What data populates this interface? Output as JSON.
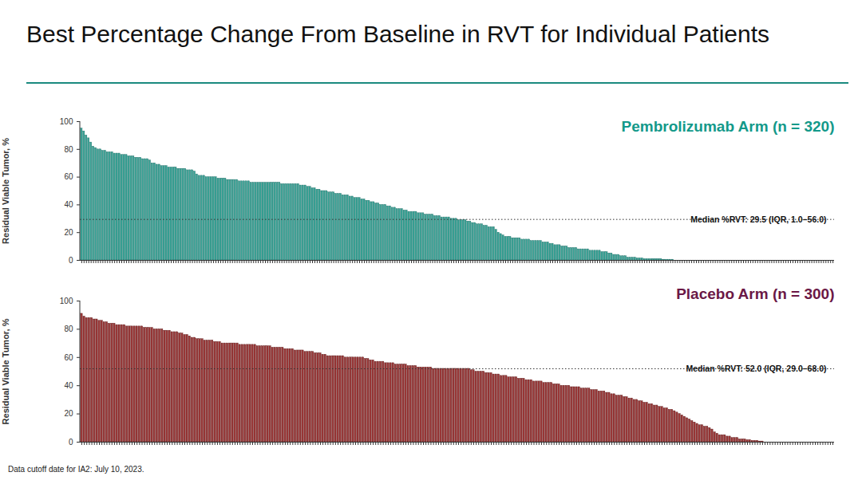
{
  "title": "Best Percentage Change From Baseline in RVT for Individual Patients",
  "footnote": "Data cutoff date for IA2: July 10, 2023.",
  "chart_data": [
    {
      "type": "bar",
      "title": "Pembrolizumab Arm (n = 320)",
      "y_label": "Residual Viable Tumor, %",
      "color": "#39a396",
      "ylim": [
        0,
        100
      ],
      "yticks": [
        0,
        20,
        40,
        60,
        80,
        100
      ],
      "tick_labels": "y",
      "annotations": [
        {
          "label": "Median %RVT: 29.5 (IQR, 1.0–56.0)",
          "y": 29.5
        }
      ],
      "categories": [
        null,
        null,
        null,
        null,
        null,
        null,
        null,
        null,
        null,
        null,
        null,
        null,
        null,
        null,
        null,
        null,
        null,
        null,
        null,
        null,
        null,
        null,
        null,
        null,
        null,
        null,
        null,
        null,
        null,
        null,
        null,
        null,
        null,
        null,
        null,
        null,
        null,
        null,
        null,
        null,
        null,
        null,
        null,
        null,
        null,
        null,
        null,
        null,
        null,
        null,
        null,
        null,
        null,
        null,
        null,
        null,
        null,
        null,
        null,
        null,
        null,
        null,
        null,
        null,
        null,
        null,
        null,
        null,
        null,
        null,
        null,
        null,
        null,
        null,
        null,
        null,
        null,
        null,
        null,
        null,
        null,
        null,
        null,
        null,
        null,
        null,
        null,
        null,
        null,
        null,
        null,
        null,
        null,
        null,
        null,
        null,
        null,
        null,
        null,
        null,
        null,
        null,
        null,
        null,
        null,
        null,
        null,
        null,
        null,
        null,
        null,
        null,
        null,
        null,
        null,
        null,
        null,
        null,
        null,
        null,
        null,
        null,
        null,
        null,
        null,
        null,
        null,
        null,
        null,
        null,
        null,
        null,
        null,
        null,
        null,
        null,
        null,
        null,
        null,
        null,
        null,
        null,
        null,
        null,
        null,
        null,
        null,
        null,
        null,
        null,
        null,
        null,
        null,
        null,
        null,
        null,
        null,
        null,
        null,
        null,
        null,
        null,
        null,
        null,
        null,
        null,
        null,
        null,
        null,
        null,
        null,
        null,
        null,
        null,
        null,
        null,
        null,
        null,
        null,
        null,
        null,
        null,
        null,
        null,
        null,
        null,
        null,
        null,
        null,
        null,
        null,
        null,
        null,
        null,
        null,
        null,
        null,
        null,
        null,
        null,
        null,
        null,
        null,
        null,
        null,
        null,
        null,
        null,
        null,
        null,
        null,
        null,
        null,
        null,
        null,
        null,
        null,
        null,
        null,
        null,
        null,
        null,
        null,
        null,
        null,
        null,
        null,
        null,
        null,
        null,
        null,
        null,
        null,
        null,
        null,
        null,
        null,
        null,
        null,
        null,
        null,
        null,
        null,
        null,
        null,
        null,
        null,
        null,
        null,
        null,
        null,
        null,
        null,
        null,
        null,
        null,
        null,
        null,
        null,
        null,
        null,
        null,
        null,
        null,
        null,
        null,
        null,
        null,
        null,
        null,
        null,
        null,
        null,
        null,
        null,
        null,
        null,
        null,
        null,
        null,
        null,
        null,
        null,
        null,
        null,
        null,
        null,
        null,
        null,
        null,
        null,
        null,
        null,
        null,
        null,
        null,
        null,
        null,
        null,
        null,
        null,
        null,
        null,
        null,
        null,
        null,
        null,
        null,
        null,
        null,
        null,
        null,
        null,
        null,
        null,
        null,
        null,
        null,
        null,
        null
      ],
      "values": [
        95,
        93,
        90,
        88,
        85,
        82,
        81,
        80,
        80,
        79,
        79,
        78,
        78,
        78,
        77,
        77,
        77,
        76,
        76,
        76,
        75,
        75,
        75,
        74,
        74,
        74,
        73,
        73,
        73,
        72,
        70,
        70,
        69,
        69,
        68,
        68,
        68,
        67,
        67,
        67,
        67,
        66,
        66,
        66,
        66,
        65,
        65,
        65,
        64,
        62,
        61,
        61,
        61,
        60,
        60,
        60,
        60,
        60,
        59,
        59,
        59,
        59,
        58,
        58,
        58,
        58,
        58,
        57,
        57,
        57,
        57,
        57,
        56,
        56,
        56,
        56,
        56,
        56,
        56,
        56,
        56,
        56,
        56,
        56,
        56,
        55,
        55,
        55,
        55,
        55,
        55,
        55,
        55,
        54,
        54,
        54,
        53,
        53,
        52,
        52,
        51,
        51,
        50,
        50,
        50,
        49,
        49,
        49,
        48,
        48,
        48,
        47,
        47,
        47,
        46,
        46,
        45,
        45,
        45,
        44,
        44,
        43,
        43,
        42,
        42,
        41,
        41,
        40,
        40,
        40,
        39,
        39,
        38,
        38,
        37,
        37,
        37,
        36,
        36,
        35,
        35,
        35,
        35,
        34,
        34,
        34,
        33,
        33,
        33,
        33,
        32,
        32,
        32,
        31,
        31,
        31,
        31,
        30,
        30,
        30,
        29,
        29,
        29,
        29,
        28,
        28,
        27,
        27,
        26,
        26,
        26,
        25,
        25,
        24,
        24,
        24,
        22,
        20,
        19,
        18,
        17,
        17,
        17,
        16,
        16,
        16,
        16,
        15,
        15,
        15,
        15,
        14,
        14,
        14,
        14,
        14,
        13,
        13,
        13,
        12,
        12,
        11,
        11,
        11,
        10,
        10,
        10,
        9,
        9,
        9,
        9,
        8,
        8,
        8,
        8,
        8,
        7,
        7,
        7,
        7,
        7,
        6,
        6,
        6,
        5,
        5,
        4,
        4,
        4,
        3,
        3,
        3,
        2,
        2,
        2,
        2,
        1.5,
        1.5,
        1.5,
        1,
        1,
        1,
        1,
        1,
        1,
        1,
        1,
        0.5,
        0.5,
        0.5,
        0.5,
        0.5,
        0,
        0,
        0,
        0,
        0,
        0,
        0,
        0,
        0,
        0,
        0,
        0,
        0,
        0,
        0,
        0,
        0,
        0,
        0,
        0,
        0,
        0,
        0,
        0,
        0,
        0,
        0,
        0,
        0,
        0,
        0,
        0,
        0,
        0,
        0,
        0,
        0,
        0,
        0,
        0,
        0,
        0,
        0,
        0,
        0,
        0,
        0,
        0,
        0,
        0,
        0,
        0,
        0,
        0,
        0,
        0,
        0,
        0,
        0,
        0,
        0,
        0,
        0,
        0,
        0,
        0,
        0,
        0
      ]
    },
    {
      "type": "bar",
      "title": "Placebo Arm (n = 300)",
      "y_label": "Residual Viable Tumor, %",
      "color": "#9a3838",
      "ylim": [
        0,
        100
      ],
      "yticks": [
        0,
        20,
        40,
        60,
        80,
        100
      ],
      "tick_labels": "y",
      "annotations": [
        {
          "label": "Median %RVT: 52.0 (IQR, 29.0–68.0)",
          "y": 52.0
        }
      ],
      "categories": [
        null,
        null,
        null,
        null,
        null,
        null,
        null,
        null,
        null,
        null,
        null,
        null,
        null,
        null,
        null,
        null,
        null,
        null,
        null,
        null,
        null,
        null,
        null,
        null,
        null,
        null,
        null,
        null,
        null,
        null,
        null,
        null,
        null,
        null,
        null,
        null,
        null,
        null,
        null,
        null,
        null,
        null,
        null,
        null,
        null,
        null,
        null,
        null,
        null,
        null,
        null,
        null,
        null,
        null,
        null,
        null,
        null,
        null,
        null,
        null,
        null,
        null,
        null,
        null,
        null,
        null,
        null,
        null,
        null,
        null,
        null,
        null,
        null,
        null,
        null,
        null,
        null,
        null,
        null,
        null,
        null,
        null,
        null,
        null,
        null,
        null,
        null,
        null,
        null,
        null,
        null,
        null,
        null,
        null,
        null,
        null,
        null,
        null,
        null,
        null,
        null,
        null,
        null,
        null,
        null,
        null,
        null,
        null,
        null,
        null,
        null,
        null,
        null,
        null,
        null,
        null,
        null,
        null,
        null,
        null,
        null,
        null,
        null,
        null,
        null,
        null,
        null,
        null,
        null,
        null,
        null,
        null,
        null,
        null,
        null,
        null,
        null,
        null,
        null,
        null,
        null,
        null,
        null,
        null,
        null,
        null,
        null,
        null,
        null,
        null,
        null,
        null,
        null,
        null,
        null,
        null,
        null,
        null,
        null,
        null,
        null,
        null,
        null,
        null,
        null,
        null,
        null,
        null,
        null,
        null,
        null,
        null,
        null,
        null,
        null,
        null,
        null,
        null,
        null,
        null,
        null,
        null,
        null,
        null,
        null,
        null,
        null,
        null,
        null,
        null,
        null,
        null,
        null,
        null,
        null,
        null,
        null,
        null,
        null,
        null,
        null,
        null,
        null,
        null,
        null,
        null,
        null,
        null,
        null,
        null,
        null,
        null,
        null,
        null,
        null,
        null,
        null,
        null,
        null,
        null,
        null,
        null,
        null,
        null,
        null,
        null,
        null,
        null,
        null,
        null,
        null,
        null,
        null,
        null,
        null,
        null,
        null,
        null,
        null,
        null,
        null,
        null,
        null,
        null,
        null,
        null,
        null,
        null,
        null,
        null,
        null,
        null,
        null,
        null,
        null,
        null,
        null,
        null,
        null,
        null,
        null,
        null,
        null,
        null,
        null,
        null,
        null,
        null,
        null,
        null,
        null,
        null,
        null,
        null,
        null,
        null,
        null,
        null,
        null,
        null,
        null,
        null,
        null,
        null,
        null,
        null,
        null,
        null,
        null,
        null,
        null,
        null,
        null,
        null,
        null,
        null,
        null,
        null,
        null,
        null
      ],
      "values": [
        91,
        89,
        88,
        88,
        88,
        87,
        87,
        86,
        86,
        85,
        85,
        84,
        84,
        84,
        83,
        83,
        83,
        83,
        82,
        82,
        82,
        82,
        82,
        82,
        82,
        81,
        81,
        81,
        81,
        80,
        80,
        80,
        80,
        79,
        79,
        79,
        78,
        78,
        78,
        77,
        77,
        76,
        76,
        75,
        74,
        74,
        73,
        73,
        73,
        72,
        72,
        72,
        72,
        71,
        71,
        71,
        70,
        70,
        70,
        70,
        70,
        70,
        70,
        69,
        69,
        69,
        69,
        69,
        69,
        69,
        68,
        68,
        68,
        68,
        68,
        68,
        67,
        67,
        67,
        67,
        67,
        66,
        66,
        66,
        66,
        65,
        65,
        65,
        65,
        64,
        64,
        64,
        64,
        63,
        63,
        63,
        62,
        62,
        61,
        61,
        61,
        61,
        61,
        61,
        61,
        60,
        60,
        60,
        60,
        60,
        60,
        60,
        60,
        59,
        59,
        58,
        58,
        57,
        57,
        57,
        57,
        56,
        56,
        56,
        56,
        55,
        55,
        55,
        55,
        55,
        54,
        54,
        54,
        54,
        53,
        53,
        53,
        53,
        53,
        53,
        52,
        52,
        52,
        52,
        52,
        52,
        52,
        52,
        52,
        52,
        52,
        52,
        52,
        52,
        52,
        51,
        51,
        50,
        50,
        50,
        50,
        49,
        49,
        49,
        48,
        48,
        48,
        47,
        47,
        47,
        46,
        46,
        46,
        46,
        45,
        45,
        45,
        44,
        44,
        44,
        43,
        43,
        43,
        43,
        42,
        42,
        42,
        42,
        41,
        41,
        41,
        40,
        40,
        40,
        40,
        39,
        39,
        39,
        39,
        38,
        38,
        38,
        38,
        37,
        37,
        37,
        36,
        36,
        36,
        35,
        35,
        34,
        34,
        33,
        33,
        33,
        32,
        32,
        31,
        31,
        30,
        30,
        29,
        29,
        28,
        28,
        27,
        27,
        26,
        26,
        25,
        25,
        24,
        24,
        23,
        23,
        22,
        21,
        20,
        19,
        18,
        17,
        16,
        15,
        14,
        13,
        12,
        12,
        11,
        11,
        10,
        9,
        7,
        6,
        5,
        5,
        5,
        4,
        4,
        3,
        3,
        3,
        2,
        2,
        2,
        1.5,
        1.5,
        1,
        1,
        1,
        0.5,
        0.5,
        0,
        0,
        0,
        0,
        0,
        0,
        0,
        0,
        0,
        0,
        0,
        0,
        0,
        0,
        0,
        0,
        0,
        0,
        0,
        0,
        0,
        0,
        0,
        0,
        0,
        0,
        0,
        0
      ]
    }
  ]
}
